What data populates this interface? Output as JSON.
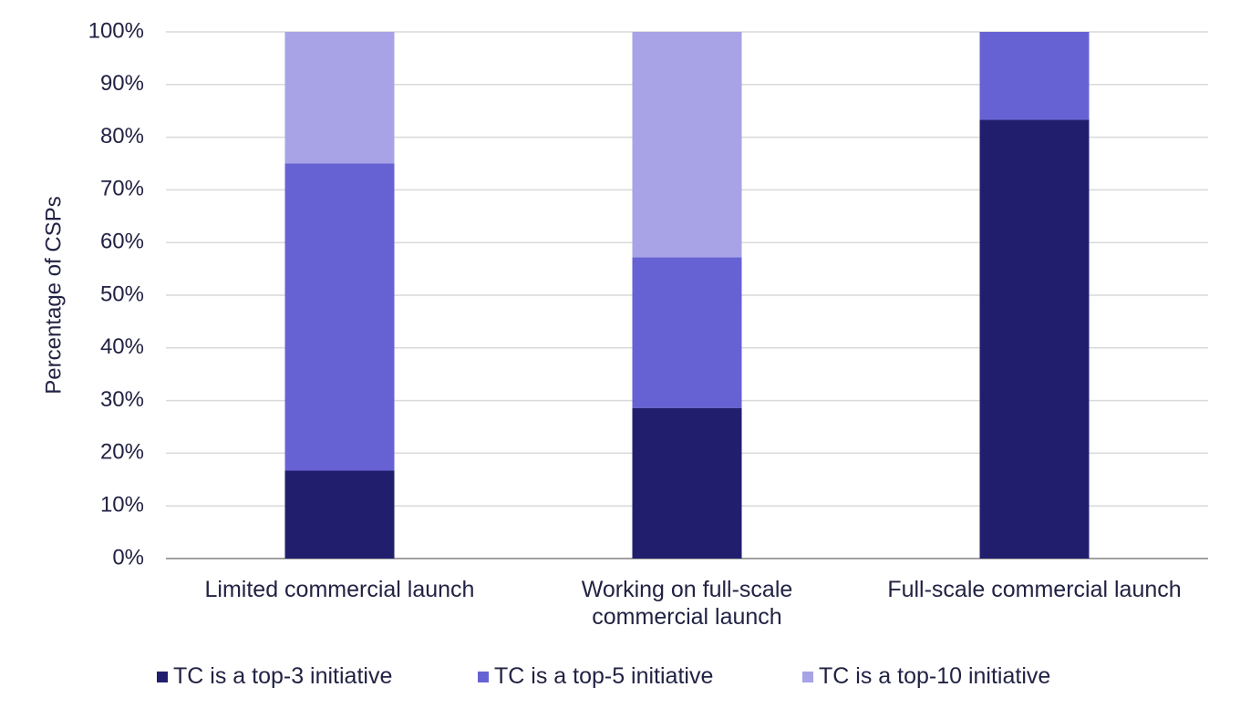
{
  "chart_data": {
    "type": "stacked_bar",
    "ylabel": "Percentage of CSPs",
    "categories": [
      "Limited commercial launch",
      "Working on full-scale commercial launch",
      "Full-scale commercial launch"
    ],
    "series": [
      {
        "name": "TC is a top-3 initiative",
        "color": "#221e6e",
        "values": [
          16.7,
          28.6,
          83.3
        ]
      },
      {
        "name": "TC is a top-5 initiative",
        "color": "#6762d4",
        "values": [
          58.3,
          28.6,
          16.7
        ]
      },
      {
        "name": "TC is a top-10 initiative",
        "color": "#a7a3e6",
        "values": [
          25,
          42.8,
          0
        ]
      }
    ],
    "ylim": [
      0,
      100
    ],
    "yticks": [
      {
        "value": 0,
        "label": "0%"
      },
      {
        "value": 10,
        "label": "10%"
      },
      {
        "value": 20,
        "label": "20%"
      },
      {
        "value": 30,
        "label": "30%"
      },
      {
        "value": 40,
        "label": "40%"
      },
      {
        "value": 50,
        "label": "50%"
      },
      {
        "value": 60,
        "label": "60%"
      },
      {
        "value": 70,
        "label": "70%"
      },
      {
        "value": 80,
        "label": "80%"
      },
      {
        "value": 90,
        "label": "90%"
      },
      {
        "value": 100,
        "label": "100%"
      }
    ],
    "grid": true,
    "legend": "bottom"
  }
}
